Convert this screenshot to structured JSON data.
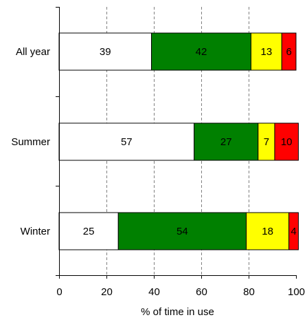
{
  "chart_data": {
    "type": "bar",
    "orientation": "horizontal",
    "stacked": true,
    "categories": [
      "All year",
      "Summer",
      "Winter"
    ],
    "series": [
      {
        "values": [
          39,
          57,
          25
        ],
        "color": "#ffffff"
      },
      {
        "values": [
          42,
          27,
          54
        ],
        "color": "#008000"
      },
      {
        "values": [
          13,
          7,
          18
        ],
        "color": "#ffff00"
      },
      {
        "values": [
          6,
          10,
          4
        ],
        "color": "#ff0000"
      }
    ],
    "xlabel": "% of time in use",
    "ylabel": "",
    "xlim": [
      0,
      100
    ],
    "xticks": [
      "0",
      "20",
      "40",
      "60",
      "80",
      "100"
    ],
    "grid": "vertical dashed",
    "legend": "none"
  }
}
